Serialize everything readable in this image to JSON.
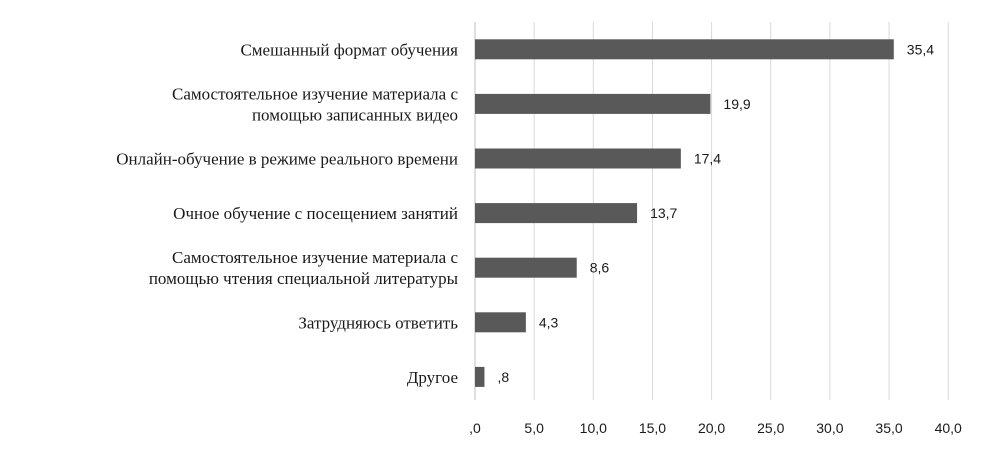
{
  "chart_data": {
    "type": "bar",
    "orientation": "horizontal",
    "title": "",
    "xlabel": "",
    "ylabel": "",
    "xlim": [
      0,
      40
    ],
    "tick_step": 5,
    "tick_labels": [
      ",0",
      "5,0",
      "10,0",
      "15,0",
      "20,0",
      "25,0",
      "30,0",
      "35,0",
      "40,0"
    ],
    "grid": "vertical",
    "legend": "none",
    "bar_color": "#595959",
    "categories": [
      [
        "Смешанный формат обучения"
      ],
      [
        "Самостоятельное изучение материала с",
        "помощью записанных видео"
      ],
      [
        "Онлайн-обучение в режиме реального времени"
      ],
      [
        "Очное обучение с посещением занятий"
      ],
      [
        "Самостоятельное изучение материала с",
        "помощью чтения специальной литературы"
      ],
      [
        "Затрудняюсь ответить"
      ],
      [
        "Другое"
      ]
    ],
    "values": [
      35.4,
      19.9,
      17.4,
      13.7,
      8.6,
      4.3,
      0.8
    ],
    "value_labels": [
      "35,4",
      "19,9",
      "17,4",
      "13,7",
      "8,6",
      "4,3",
      ",8"
    ]
  }
}
